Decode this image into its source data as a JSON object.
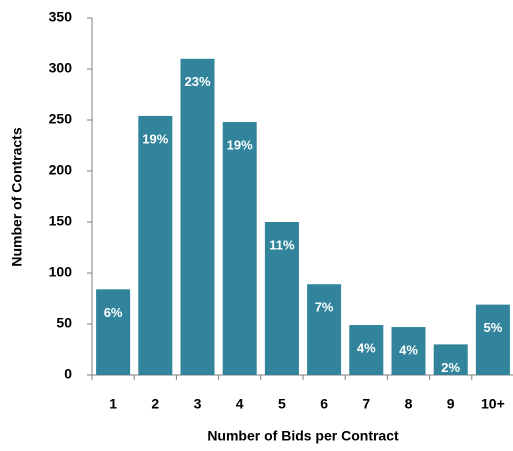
{
  "chart_data": {
    "type": "bar",
    "x_label": "Number of Bids per Contract",
    "y_label": "Number of Contracts",
    "categories": [
      "1",
      "2",
      "3",
      "4",
      "5",
      "6",
      "7",
      "8",
      "9",
      "10+"
    ],
    "values": [
      84,
      254,
      310,
      248,
      150,
      89,
      49,
      47,
      30,
      69
    ],
    "value_labels": [
      "6%",
      "19%",
      "23%",
      "19%",
      "11%",
      "7%",
      "4%",
      "4%",
      "2%",
      "5%"
    ],
    "color": "#31849b",
    "ylim": [
      0,
      350
    ],
    "yticks": [
      0,
      50,
      100,
      150,
      200,
      250,
      300,
      350
    ],
    "grid": false
  }
}
